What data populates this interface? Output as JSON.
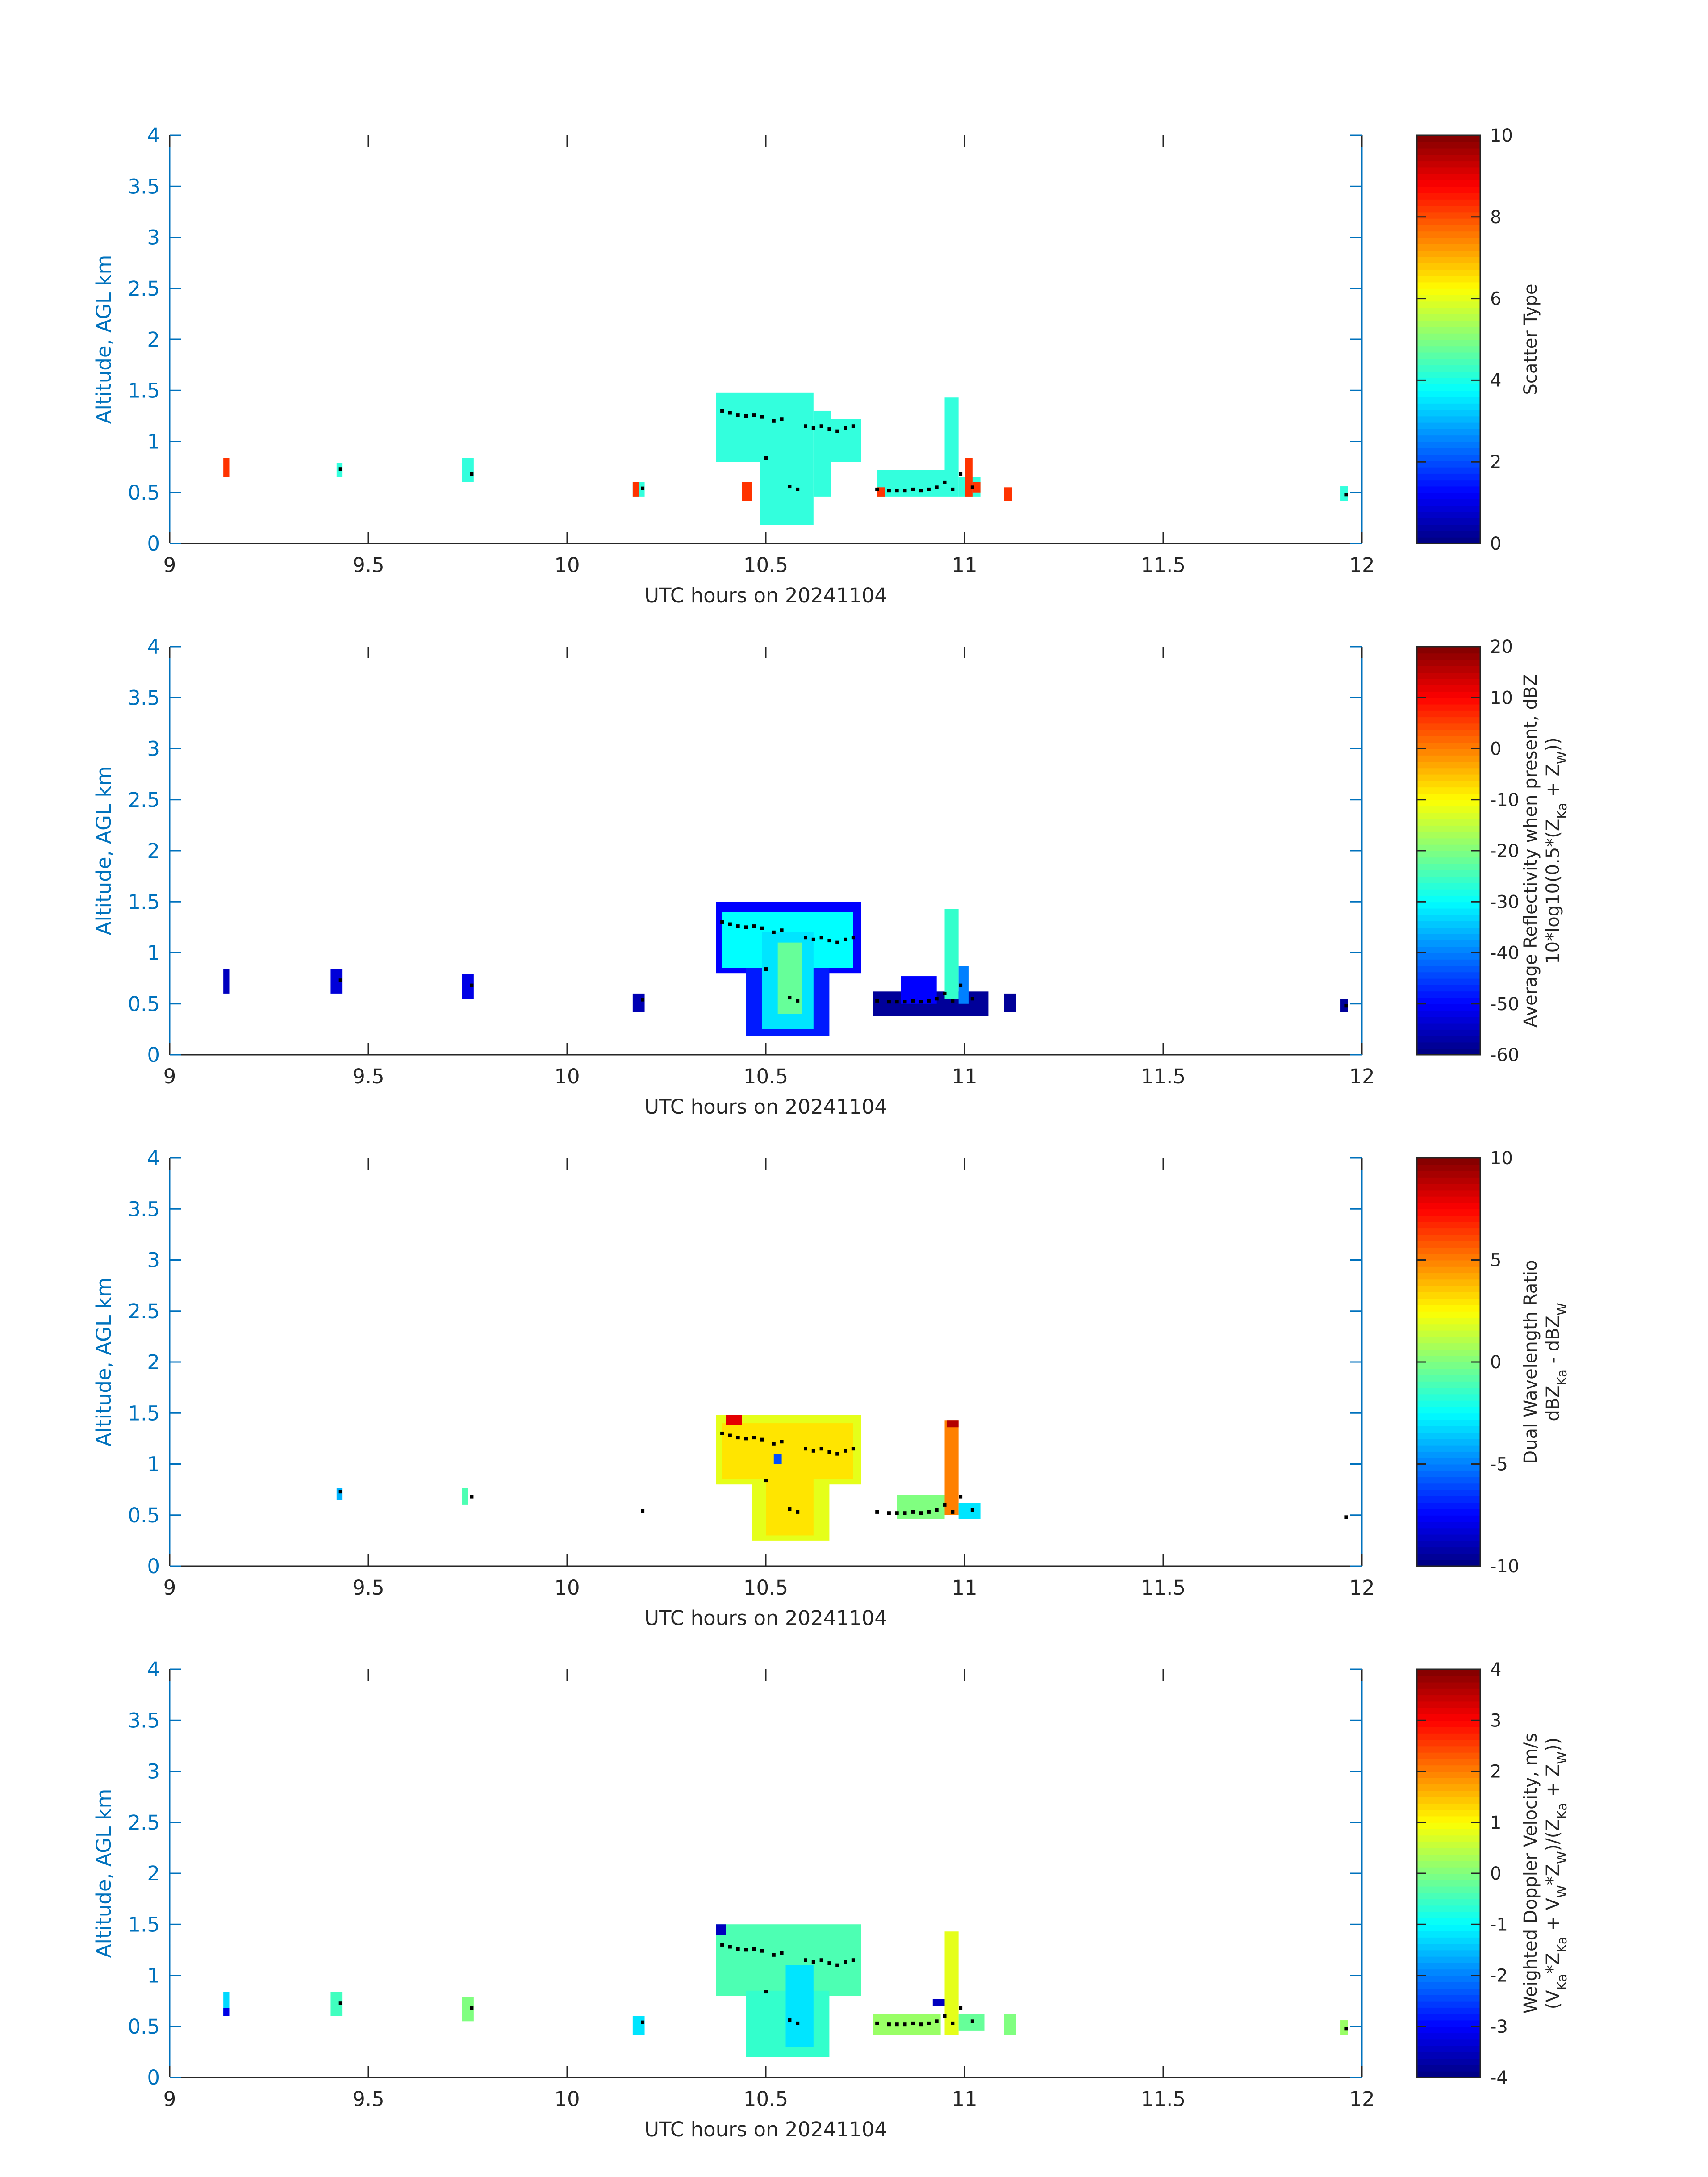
{
  "colors": {
    "axis": "#0072BD",
    "text": "#262626",
    "marker": "#000000",
    "scatter_orange": "#FF3300",
    "scatter_cyan": "#33FFDD"
  },
  "colormap": "jet",
  "chart_data": [
    {
      "type": "heatmap",
      "title": "",
      "xlabel": "UTC hours on 20241104",
      "ylabel": "Altitude, AGL km",
      "xlim": [
        9,
        12
      ],
      "ylim": [
        0,
        4
      ],
      "xticks": [
        "9",
        "9.5",
        "10",
        "10.5",
        "11",
        "11.5",
        "12"
      ],
      "yticks": [
        "0",
        "0.5",
        "1",
        "1.5",
        "2",
        "2.5",
        "3",
        "3.5",
        "4"
      ],
      "colorbar": {
        "label_lines": [
          "Scatter Type"
        ],
        "clim": [
          0,
          10
        ],
        "ticks": [
          "0",
          "2",
          "4",
          "6",
          "8",
          "10"
        ]
      },
      "cells": [
        {
          "x0": 9.135,
          "x1": 9.15,
          "y0": 0.65,
          "y1": 0.84,
          "v": 8
        },
        {
          "x0": 9.42,
          "x1": 9.435,
          "y0": 0.65,
          "y1": 0.79,
          "v": 3.7
        },
        {
          "x0": 9.735,
          "x1": 9.765,
          "y0": 0.6,
          "y1": 0.84,
          "v": 3.7
        },
        {
          "x0": 10.165,
          "x1": 10.195,
          "y0": 0.46,
          "y1": 0.6,
          "v": 3.7
        },
        {
          "x0": 10.165,
          "x1": 10.18,
          "y0": 0.46,
          "y1": 0.6,
          "v": 8
        },
        {
          "x0": 10.375,
          "x1": 10.485,
          "y0": 0.8,
          "y1": 1.48,
          "v": 3.7
        },
        {
          "x0": 10.485,
          "x1": 10.62,
          "y0": 0.18,
          "y1": 1.48,
          "v": 3.7
        },
        {
          "x0": 10.62,
          "x1": 10.665,
          "y0": 0.46,
          "y1": 1.3,
          "v": 3.7
        },
        {
          "x0": 10.665,
          "x1": 10.74,
          "y0": 0.8,
          "y1": 1.22,
          "v": 3.7
        },
        {
          "x0": 10.44,
          "x1": 10.465,
          "y0": 0.42,
          "y1": 0.6,
          "v": 8
        },
        {
          "x0": 10.78,
          "x1": 10.95,
          "y0": 0.46,
          "y1": 0.72,
          "v": 3.7
        },
        {
          "x0": 10.78,
          "x1": 10.8,
          "y0": 0.46,
          "y1": 0.55,
          "v": 8
        },
        {
          "x0": 10.95,
          "x1": 10.985,
          "y0": 0.46,
          "y1": 1.43,
          "v": 3.7
        },
        {
          "x0": 10.985,
          "x1": 11.04,
          "y0": 0.46,
          "y1": 0.65,
          "v": 3.7
        },
        {
          "x0": 11.0,
          "x1": 11.02,
          "y0": 0.46,
          "y1": 0.84,
          "v": 8
        },
        {
          "x0": 11.02,
          "x1": 11.04,
          "y0": 0.5,
          "y1": 0.6,
          "v": 8
        },
        {
          "x0": 11.1,
          "x1": 11.12,
          "y0": 0.42,
          "y1": 0.55,
          "v": 8
        },
        {
          "x0": 11.945,
          "x1": 11.965,
          "y0": 0.42,
          "y1": 0.56,
          "v": 3.7
        }
      ]
    },
    {
      "type": "heatmap",
      "title": "",
      "xlabel": "UTC hours on 20241104",
      "ylabel": "Altitude, AGL km",
      "xlim": [
        9,
        12
      ],
      "ylim": [
        0,
        4
      ],
      "xticks": [
        "9",
        "9.5",
        "10",
        "10.5",
        "11",
        "11.5",
        "12"
      ],
      "yticks": [
        "0",
        "0.5",
        "1",
        "1.5",
        "2",
        "2.5",
        "3",
        "3.5",
        "4"
      ],
      "colorbar": {
        "label_lines": [
          "Average Reflectivity when present, dBZ",
          "10*log10(0.5*(Z_Ka + Z_W))"
        ],
        "clim": [
          -60,
          20
        ],
        "ticks": [
          "-60",
          "-50",
          "-40",
          "-30",
          "-20",
          "-10",
          "0",
          "10",
          "20"
        ]
      },
      "cells": [
        {
          "x0": 9.135,
          "x1": 9.15,
          "y0": 0.6,
          "y1": 0.84,
          "v": -55
        },
        {
          "x0": 9.405,
          "x1": 9.435,
          "y0": 0.6,
          "y1": 0.84,
          "v": -53
        },
        {
          "x0": 9.735,
          "x1": 9.765,
          "y0": 0.55,
          "y1": 0.79,
          "v": -52
        },
        {
          "x0": 10.165,
          "x1": 10.195,
          "y0": 0.42,
          "y1": 0.6,
          "v": -56
        },
        {
          "x0": 10.375,
          "x1": 10.74,
          "y0": 0.8,
          "y1": 1.5,
          "v": -50
        },
        {
          "x0": 10.39,
          "x1": 10.72,
          "y0": 0.85,
          "y1": 1.4,
          "v": -30
        },
        {
          "x0": 10.45,
          "x1": 10.66,
          "y0": 0.18,
          "y1": 0.85,
          "v": -48
        },
        {
          "x0": 10.49,
          "x1": 10.62,
          "y0": 0.25,
          "y1": 1.2,
          "v": -32
        },
        {
          "x0": 10.53,
          "x1": 10.59,
          "y0": 0.4,
          "y1": 1.1,
          "v": -22
        },
        {
          "x0": 10.77,
          "x1": 11.06,
          "y0": 0.38,
          "y1": 0.62,
          "v": -58
        },
        {
          "x0": 10.84,
          "x1": 10.93,
          "y0": 0.5,
          "y1": 0.77,
          "v": -50
        },
        {
          "x0": 10.95,
          "x1": 10.985,
          "y0": 0.55,
          "y1": 1.43,
          "v": -26
        },
        {
          "x0": 10.985,
          "x1": 11.01,
          "y0": 0.5,
          "y1": 0.87,
          "v": -40
        },
        {
          "x0": 11.1,
          "x1": 11.13,
          "y0": 0.42,
          "y1": 0.6,
          "v": -58
        },
        {
          "x0": 11.945,
          "x1": 11.965,
          "y0": 0.42,
          "y1": 0.55,
          "v": -58
        }
      ]
    },
    {
      "type": "heatmap",
      "title": "",
      "xlabel": "UTC hours on 20241104",
      "ylabel": "Altitude, AGL km",
      "xlim": [
        9,
        12
      ],
      "ylim": [
        0,
        4
      ],
      "xticks": [
        "9",
        "9.5",
        "10",
        "10.5",
        "11",
        "11.5",
        "12"
      ],
      "yticks": [
        "0",
        "0.5",
        "1",
        "1.5",
        "2",
        "2.5",
        "3",
        "3.5",
        "4"
      ],
      "colorbar": {
        "label_lines": [
          "Dual Wavelength Ratio",
          "dBZ_Ka - dBZ_W"
        ],
        "clim": [
          -10,
          10
        ],
        "ticks": [
          "-10",
          "-5",
          "0",
          "5",
          "10"
        ]
      },
      "cells": [
        {
          "x0": 9.42,
          "x1": 9.435,
          "y0": 0.65,
          "y1": 0.77,
          "v": -4
        },
        {
          "x0": 9.735,
          "x1": 9.75,
          "y0": 0.6,
          "y1": 0.77,
          "v": -1
        },
        {
          "x0": 10.375,
          "x1": 10.74,
          "y0": 0.8,
          "y1": 1.48,
          "v": 2
        },
        {
          "x0": 10.39,
          "x1": 10.72,
          "y0": 0.85,
          "y1": 1.4,
          "v": 3
        },
        {
          "x0": 10.465,
          "x1": 10.66,
          "y0": 0.25,
          "y1": 0.85,
          "v": 2
        },
        {
          "x0": 10.5,
          "x1": 10.62,
          "y0": 0.3,
          "y1": 1.2,
          "v": 3
        },
        {
          "x0": 10.4,
          "x1": 10.44,
          "y0": 1.38,
          "y1": 1.48,
          "v": 8
        },
        {
          "x0": 10.52,
          "x1": 10.54,
          "y0": 1.0,
          "y1": 1.1,
          "v": -6
        },
        {
          "x0": 10.83,
          "x1": 10.95,
          "y0": 0.46,
          "y1": 0.7,
          "v": 0
        },
        {
          "x0": 10.95,
          "x1": 10.985,
          "y0": 0.5,
          "y1": 1.43,
          "v": 5
        },
        {
          "x0": 10.955,
          "x1": 10.985,
          "y0": 1.36,
          "y1": 1.43,
          "v": 9
        },
        {
          "x0": 10.985,
          "x1": 11.04,
          "y0": 0.46,
          "y1": 0.62,
          "v": -3
        }
      ]
    },
    {
      "type": "heatmap",
      "title": "",
      "xlabel": "UTC hours on 20241104",
      "ylabel": "Altitude, AGL km",
      "xlim": [
        9,
        12
      ],
      "ylim": [
        0,
        4
      ],
      "xticks": [
        "9",
        "9.5",
        "10",
        "10.5",
        "11",
        "11.5",
        "12"
      ],
      "yticks": [
        "0",
        "0.5",
        "1",
        "1.5",
        "2",
        "2.5",
        "3",
        "3.5",
        "4"
      ],
      "colorbar": {
        "label_lines": [
          "Weighted Doppler Velocity, m/s",
          "(V_Ka*Z_Ka + V_W*Z_W)/(Z_Ka + Z_W))"
        ],
        "clim": [
          -4,
          4
        ],
        "ticks": [
          "-4",
          "-3",
          "-2",
          "-1",
          "0",
          "1",
          "2",
          "3",
          "4"
        ]
      },
      "cells": [
        {
          "x0": 9.135,
          "x1": 9.15,
          "y0": 0.6,
          "y1": 0.84,
          "v": -1.3
        },
        {
          "x0": 9.135,
          "x1": 9.15,
          "y0": 0.6,
          "y1": 0.68,
          "v": -3.2
        },
        {
          "x0": 9.405,
          "x1": 9.435,
          "y0": 0.6,
          "y1": 0.84,
          "v": -0.5
        },
        {
          "x0": 9.735,
          "x1": 9.765,
          "y0": 0.55,
          "y1": 0.79,
          "v": 0
        },
        {
          "x0": 10.165,
          "x1": 10.195,
          "y0": 0.42,
          "y1": 0.6,
          "v": -1.2
        },
        {
          "x0": 10.375,
          "x1": 10.74,
          "y0": 0.8,
          "y1": 1.5,
          "v": -0.4
        },
        {
          "x0": 10.45,
          "x1": 10.66,
          "y0": 0.2,
          "y1": 0.85,
          "v": -0.6
        },
        {
          "x0": 10.55,
          "x1": 10.62,
          "y0": 0.3,
          "y1": 1.1,
          "v": -1.2
        },
        {
          "x0": 10.375,
          "x1": 10.4,
          "y0": 1.4,
          "y1": 1.5,
          "v": -3.5
        },
        {
          "x0": 10.77,
          "x1": 10.94,
          "y0": 0.42,
          "y1": 0.62,
          "v": 0.2
        },
        {
          "x0": 10.95,
          "x1": 10.985,
          "y0": 0.42,
          "y1": 1.43,
          "v": 0.8
        },
        {
          "x0": 10.985,
          "x1": 11.05,
          "y0": 0.46,
          "y1": 0.62,
          "v": -0.2
        },
        {
          "x0": 10.92,
          "x1": 10.95,
          "y0": 0.7,
          "y1": 0.77,
          "v": -3.5
        },
        {
          "x0": 11.1,
          "x1": 11.13,
          "y0": 0.42,
          "y1": 0.62,
          "v": 0
        },
        {
          "x0": 11.945,
          "x1": 11.965,
          "y0": 0.42,
          "y1": 0.56,
          "v": 0.2
        }
      ]
    }
  ],
  "markers": [
    [
      9.43,
      0.73
    ],
    [
      9.76,
      0.68
    ],
    [
      10.19,
      0.54
    ],
    [
      10.39,
      1.3
    ],
    [
      10.41,
      1.28
    ],
    [
      10.43,
      1.26
    ],
    [
      10.45,
      1.25
    ],
    [
      10.47,
      1.26
    ],
    [
      10.49,
      1.24
    ],
    [
      10.5,
      0.84
    ],
    [
      10.52,
      1.2
    ],
    [
      10.54,
      1.22
    ],
    [
      10.56,
      0.56
    ],
    [
      10.58,
      0.53
    ],
    [
      10.6,
      1.15
    ],
    [
      10.62,
      1.13
    ],
    [
      10.64,
      1.15
    ],
    [
      10.66,
      1.12
    ],
    [
      10.68,
      1.1
    ],
    [
      10.7,
      1.13
    ],
    [
      10.72,
      1.15
    ],
    [
      10.78,
      0.53
    ],
    [
      10.81,
      0.52
    ],
    [
      10.83,
      0.52
    ],
    [
      10.85,
      0.52
    ],
    [
      10.87,
      0.53
    ],
    [
      10.89,
      0.52
    ],
    [
      10.91,
      0.53
    ],
    [
      10.93,
      0.55
    ],
    [
      10.95,
      0.6
    ],
    [
      10.97,
      0.53
    ],
    [
      10.99,
      0.68
    ],
    [
      11.02,
      0.55
    ],
    [
      11.96,
      0.48
    ]
  ]
}
